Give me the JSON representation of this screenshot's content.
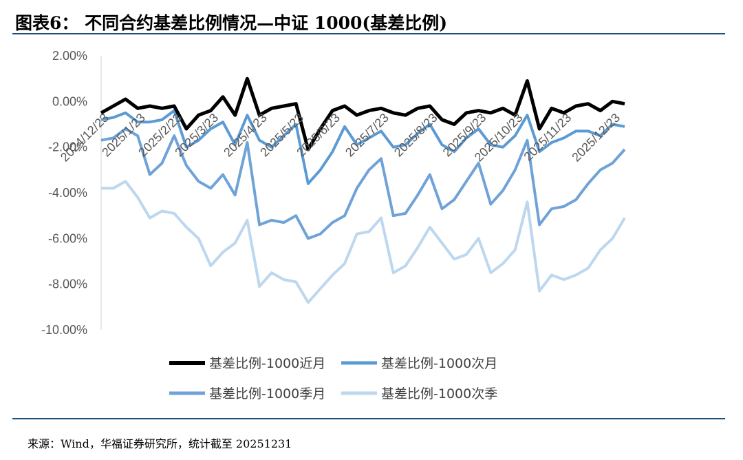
{
  "title": "图表6： 不同合约基差比例情况—中证 1000(基差比例)",
  "source": "来源：Wind，华福证券研究所，统计截至 20251231",
  "chart_data": {
    "type": "line",
    "ylim": [
      -10,
      2
    ],
    "y_ticks": [
      "2.00%",
      "0.00%",
      "-2.00%",
      "-4.00%",
      "-6.00%",
      "-8.00%",
      "-10.00%"
    ],
    "y_tick_values": [
      2,
      0,
      -2,
      -4,
      -6,
      -8,
      -10
    ],
    "x_tick_labels": [
      "2024/12/23",
      "2025/1/23",
      "2025/2/23",
      "2025/3/23",
      "2025/4/23",
      "2025/5/23",
      "2025/6/23",
      "2025/7/23",
      "2025/8/23",
      "2025/9/23",
      "2025/10/23",
      "2025/11/23",
      "2025/12/23"
    ],
    "x": [
      "2024/12/23",
      "2025/1/3",
      "2025/1/13",
      "2025/1/23",
      "2025/2/5",
      "2025/2/13",
      "2025/2/23",
      "2025/3/3",
      "2025/3/13",
      "2025/3/23",
      "2025/4/1",
      "2025/4/8",
      "2025/4/15",
      "2025/4/23",
      "2025/5/6",
      "2025/5/13",
      "2025/5/23",
      "2025/6/3",
      "2025/6/13",
      "2025/6/23",
      "2025/7/1",
      "2025/7/10",
      "2025/7/18",
      "2025/7/23",
      "2025/8/1",
      "2025/8/11",
      "2025/8/18",
      "2025/8/23",
      "2025/9/1",
      "2025/9/10",
      "2025/9/18",
      "2025/9/23",
      "2025/10/9",
      "2025/10/17",
      "2025/10/23",
      "2025/11/3",
      "2025/11/12",
      "2025/11/19",
      "2025/11/23",
      "2025/12/3",
      "2025/12/12",
      "2025/12/19",
      "2025/12/23",
      "2025/12/31"
    ],
    "grid": false,
    "legend_position": "bottom",
    "series": [
      {
        "name": "基差比例-1000近月",
        "color": "#000000",
        "values": [
          -0.5,
          -0.2,
          0.1,
          -0.3,
          -0.2,
          -0.3,
          -0.2,
          -1.2,
          -0.6,
          -0.4,
          0.2,
          -0.6,
          1.0,
          -0.6,
          -0.3,
          -0.2,
          -0.1,
          -2.1,
          -1.2,
          -0.4,
          -0.2,
          -0.6,
          -0.4,
          -0.3,
          -0.5,
          -0.6,
          -0.3,
          -0.2,
          -0.8,
          -1.0,
          -0.5,
          -0.4,
          -0.5,
          -0.3,
          -0.6,
          0.9,
          -1.2,
          -0.3,
          -0.5,
          -0.2,
          -0.1,
          -0.4,
          0.0,
          -0.1
        ]
      },
      {
        "name": "基差比例-1000次月",
        "color": "#5b9bd5",
        "values": [
          -0.8,
          -0.7,
          -0.5,
          -0.9,
          -0.9,
          -0.8,
          -0.4,
          -2.0,
          -1.7,
          -1.2,
          -0.9,
          -1.9,
          -0.6,
          -1.7,
          -2.0,
          -1.5,
          -1.0,
          -3.6,
          -3.0,
          -2.2,
          -1.1,
          -1.9,
          -1.6,
          -1.3,
          -2.0,
          -1.9,
          -1.4,
          -1.0,
          -1.9,
          -2.2,
          -1.6,
          -1.2,
          -1.9,
          -2.0,
          -1.5,
          -0.6,
          -2.2,
          -1.8,
          -1.6,
          -1.3,
          -1.3,
          -1.5,
          -1.0,
          -1.1
        ]
      },
      {
        "name": "基差比例-1000季月",
        "color": "#6fa3d8",
        "values": [
          -1.7,
          -1.6,
          -1.2,
          -1.5,
          -3.2,
          -2.7,
          -1.5,
          -2.8,
          -3.5,
          -3.8,
          -3.2,
          -4.1,
          -1.8,
          -5.4,
          -5.2,
          -5.3,
          -5.0,
          -6.0,
          -5.8,
          -5.3,
          -5.0,
          -3.8,
          -3.0,
          -2.5,
          -5.0,
          -4.9,
          -4.1,
          -3.2,
          -4.7,
          -4.3,
          -3.5,
          -2.7,
          -4.5,
          -3.9,
          -3.0,
          -1.7,
          -5.4,
          -4.7,
          -4.6,
          -4.3,
          -3.6,
          -3.0,
          -2.7,
          -2.1
        ]
      },
      {
        "name": "基差比例-1000次季",
        "color": "#bdd7ee",
        "values": [
          -3.8,
          -3.8,
          -3.5,
          -4.2,
          -5.1,
          -4.8,
          -4.9,
          -5.5,
          -6.0,
          -7.2,
          -6.6,
          -6.2,
          -5.2,
          -8.1,
          -7.5,
          -7.8,
          -7.9,
          -8.8,
          -8.2,
          -7.6,
          -7.1,
          -5.8,
          -5.7,
          -5.1,
          -7.5,
          -7.2,
          -6.4,
          -5.5,
          -6.2,
          -6.9,
          -6.7,
          -6.0,
          -7.5,
          -7.1,
          -6.5,
          -4.4,
          -8.3,
          -7.6,
          -7.8,
          -7.6,
          -7.3,
          -6.5,
          -6.0,
          -5.1
        ]
      }
    ]
  }
}
